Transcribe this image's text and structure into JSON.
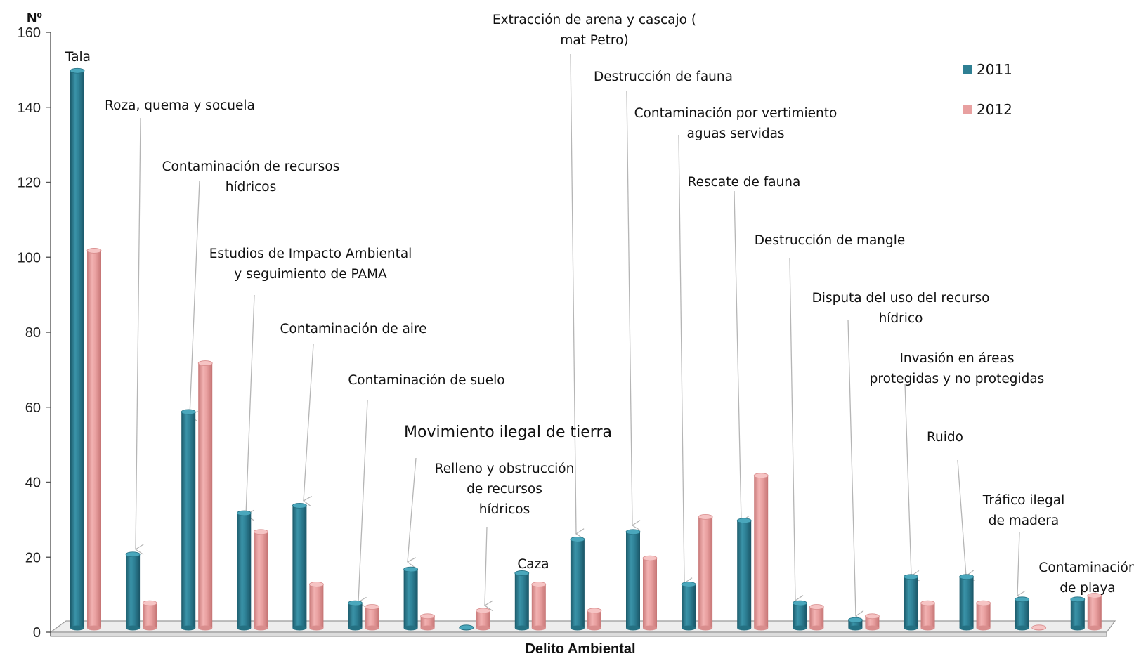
{
  "chart_data": {
    "type": "bar",
    "title": "",
    "ylabel": "Nº",
    "xlabel": "Delito Ambiental",
    "ylim": [
      0,
      160
    ],
    "yticks": [
      0,
      20,
      40,
      60,
      80,
      100,
      120,
      140,
      160
    ],
    "grid": false,
    "legend_position": "top-right",
    "categories": [
      "Tala",
      "Roza, quema y socuela",
      "Contaminación de recursos hídricos",
      "Estudios de Impacto Ambiental y seguimiento de PAMA",
      "Contaminación de aire",
      "Contaminación de suelo",
      "Movimiento ilegal de tierra",
      "Relleno y obstrucción de recursos hídricos",
      "Caza",
      "Extracción de arena y cascajo ( mat Petro)",
      "Destrucción de fauna",
      "Contaminación por vertimiento aguas servidas",
      "Rescate de fauna",
      "Destrucción de mangle",
      "Disputa del uso del recurso hídrico",
      "Invasión  en áreas protegidas y no protegidas",
      "Ruido",
      "Tráfico ilegal de madera",
      "Contaminación de playa"
    ],
    "series": [
      {
        "name": "2011",
        "color": "#2e7f93",
        "values": [
          149,
          20,
          58,
          31,
          33,
          7,
          16,
          0.5,
          15,
          24,
          26,
          12,
          29,
          7,
          2.5,
          14,
          14,
          8,
          8
        ]
      },
      {
        "name": "2012",
        "color": "#e8a0a0",
        "values": [
          101,
          7,
          71,
          26,
          12,
          6,
          3.5,
          5,
          12,
          5,
          19,
          30,
          41,
          6,
          3.5,
          7,
          7,
          0.5,
          9
        ]
      }
    ],
    "annotations": [
      {
        "lines": [
          "Tala"
        ],
        "arrow": false
      },
      {
        "lines": [
          "Roza, quema y socuela"
        ],
        "arrow": true
      },
      {
        "lines": [
          "Contaminación de recursos",
          "hídricos"
        ],
        "arrow": true
      },
      {
        "lines": [
          "Estudios de Impacto Ambiental",
          "y seguimiento de PAMA"
        ],
        "arrow": true
      },
      {
        "lines": [
          "Contaminación de aire"
        ],
        "arrow": true
      },
      {
        "lines": [
          "Contaminación de suelo"
        ],
        "arrow": true
      },
      {
        "lines": [
          "Movimiento ilegal de tierra"
        ],
        "arrow": true
      },
      {
        "lines": [
          "Relleno y obstrucción",
          "de recursos",
          "hídricos"
        ],
        "arrow": true
      },
      {
        "lines": [
          "Caza"
        ],
        "arrow": false
      },
      {
        "lines": [
          "Extracción de arena y cascajo (",
          "mat Petro)"
        ],
        "arrow": true
      },
      {
        "lines": [
          "Destrucción de fauna"
        ],
        "arrow": true
      },
      {
        "lines": [
          "Contaminación por vertimiento",
          "aguas servidas"
        ],
        "arrow": true
      },
      {
        "lines": [
          "Rescate de fauna"
        ],
        "arrow": true
      },
      {
        "lines": [
          "Destrucción de mangle"
        ],
        "arrow": true
      },
      {
        "lines": [
          "Disputa del uso del recurso",
          "hídrico"
        ],
        "arrow": true
      },
      {
        "lines": [
          "Invasión  en áreas",
          "protegidas y no protegidas"
        ],
        "arrow": true
      },
      {
        "lines": [
          "Ruido"
        ],
        "arrow": true
      },
      {
        "lines": [
          "Tráfico ilegal",
          "de madera"
        ],
        "arrow": true
      },
      {
        "lines": [
          "Contaminación",
          "de playa"
        ],
        "arrow": false
      }
    ]
  }
}
